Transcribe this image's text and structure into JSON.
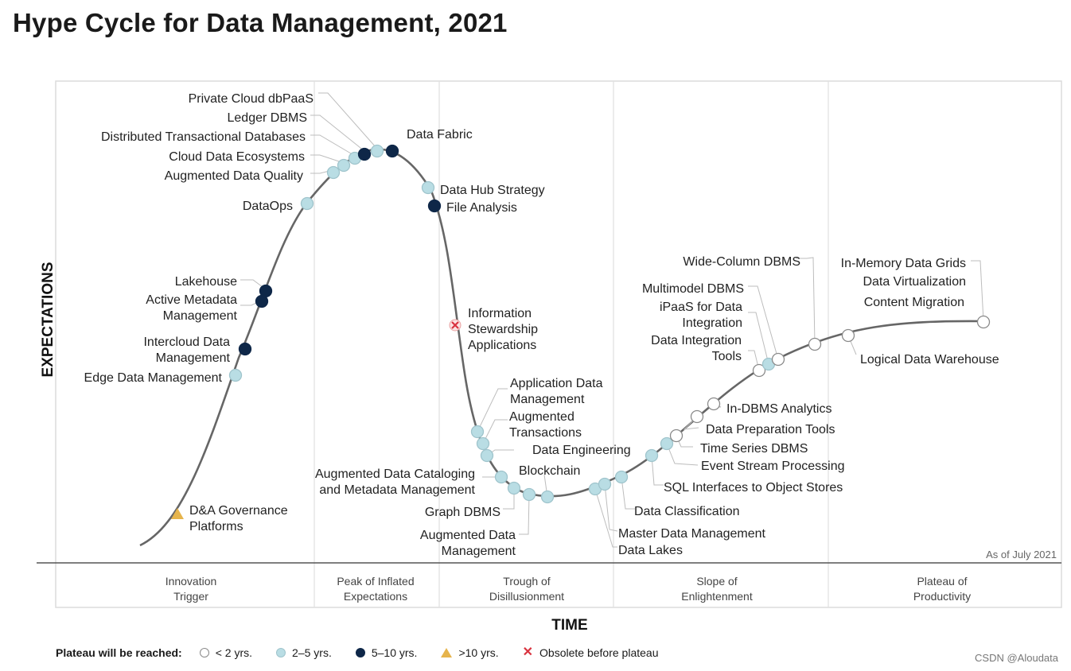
{
  "title": "Hype Cycle for Data Management, 2021",
  "as_of": "As of July 2021",
  "axes": {
    "y": "EXPECTATIONS",
    "x": "TIME"
  },
  "phases": [
    {
      "line1": "Innovation",
      "line2": "Trigger"
    },
    {
      "line1": "Peak of Inflated",
      "line2": "Expectations"
    },
    {
      "line1": "Trough of",
      "line2": "Disillusionment"
    },
    {
      "line1": "Slope of",
      "line2": "Enlightenment"
    },
    {
      "line1": "Plateau of",
      "line2": "Productivity"
    }
  ],
  "legend": {
    "title": "Plateau will be reached:",
    "items": [
      {
        "key": "lt2",
        "label": "< 2 yrs.",
        "color": "#ffffff"
      },
      {
        "key": "2to5",
        "label": "2–5 yrs.",
        "color": "#b9dde4"
      },
      {
        "key": "5to10",
        "label": "5–10 yrs.",
        "color": "#0e2748"
      },
      {
        "key": "gt10",
        "label": ">10 yrs.",
        "color": "#e6b44c"
      },
      {
        "key": "obsolete",
        "label": "Obsolete before plateau",
        "color": "#d9333f"
      }
    ]
  },
  "technologies": [
    {
      "name": "D&A Governance Platforms",
      "lines": [
        "D&A Governance",
        "Platforms"
      ],
      "type": "gt10"
    },
    {
      "name": "Edge Data Management",
      "lines": [
        "Edge Data Management"
      ],
      "type": "2to5"
    },
    {
      "name": "Intercloud Data Management",
      "lines": [
        "Intercloud Data",
        "Management"
      ],
      "type": "5to10"
    },
    {
      "name": "Active Metadata Management",
      "lines": [
        "Active Metadata",
        "Management"
      ],
      "type": "5to10"
    },
    {
      "name": "Lakehouse",
      "lines": [
        "Lakehouse"
      ],
      "type": "5to10"
    },
    {
      "name": "DataOps",
      "lines": [
        "DataOps"
      ],
      "type": "2to5"
    },
    {
      "name": "Augmented Data Quality",
      "lines": [
        "Augmented Data Quality"
      ],
      "type": "2to5"
    },
    {
      "name": "Cloud Data Ecosystems",
      "lines": [
        "Cloud Data Ecosystems"
      ],
      "type": "2to5"
    },
    {
      "name": "Distributed Transactional Databases",
      "lines": [
        "Distributed Transactional Databases"
      ],
      "type": "2to5"
    },
    {
      "name": "Ledger DBMS",
      "lines": [
        "Ledger DBMS"
      ],
      "type": "5to10"
    },
    {
      "name": "Private Cloud dbPaaS",
      "lines": [
        "Private Cloud dbPaaS"
      ],
      "type": "2to5"
    },
    {
      "name": "Data Fabric",
      "lines": [
        "Data Fabric"
      ],
      "type": "5to10"
    },
    {
      "name": "Data Hub Strategy",
      "lines": [
        "Data Hub Strategy"
      ],
      "type": "2to5"
    },
    {
      "name": "File Analysis",
      "lines": [
        "File Analysis"
      ],
      "type": "5to10"
    },
    {
      "name": "Information Stewardship Applications",
      "lines": [
        "Information",
        "Stewardship",
        "Applications"
      ],
      "type": "obsolete"
    },
    {
      "name": "Application Data Management",
      "lines": [
        "Application Data",
        "Management"
      ],
      "type": "2to5"
    },
    {
      "name": "Augmented Transactions",
      "lines": [
        "Augmented",
        "Transactions"
      ],
      "type": "2to5"
    },
    {
      "name": "Data Engineering",
      "lines": [
        "Data Engineering"
      ],
      "type": "2to5"
    },
    {
      "name": "Augmented Data Cataloging and Metadata Management",
      "lines": [
        "Augmented Data Cataloging",
        "and Metadata Management"
      ],
      "type": "2to5"
    },
    {
      "name": "Graph DBMS",
      "lines": [
        "Graph DBMS"
      ],
      "type": "2to5"
    },
    {
      "name": "Augmented Data Management",
      "lines": [
        "Augmented Data",
        "Management"
      ],
      "type": "2to5"
    },
    {
      "name": "Blockchain",
      "lines": [
        "Blockchain"
      ],
      "type": "2to5"
    },
    {
      "name": "Data Lakes",
      "lines": [
        "Data Lakes"
      ],
      "type": "2to5"
    },
    {
      "name": "Master Data Management",
      "lines": [
        "Master Data Management"
      ],
      "type": "2to5"
    },
    {
      "name": "Data Classification",
      "lines": [
        "Data Classification"
      ],
      "type": "2to5"
    },
    {
      "name": "SQL Interfaces to Object Stores",
      "lines": [
        "SQL Interfaces to Object Stores"
      ],
      "type": "2to5"
    },
    {
      "name": "Event Stream Processing",
      "lines": [
        "Event Stream Processing"
      ],
      "type": "2to5"
    },
    {
      "name": "Time Series DBMS",
      "lines": [
        "Time Series DBMS"
      ],
      "type": "lt2"
    },
    {
      "name": "Data Preparation Tools",
      "lines": [
        "Data Preparation Tools"
      ],
      "type": "lt2"
    },
    {
      "name": "In-DBMS Analytics",
      "lines": [
        "In-DBMS Analytics"
      ],
      "type": "lt2"
    },
    {
      "name": "Data Integration Tools",
      "lines": [
        "Data Integration",
        "Tools"
      ],
      "type": "lt2"
    },
    {
      "name": "iPaaS for Data Integration",
      "lines": [
        "iPaaS for Data",
        "Integration"
      ],
      "type": "2to5"
    },
    {
      "name": "Multimodel DBMS",
      "lines": [
        "Multimodel DBMS"
      ],
      "type": "lt2"
    },
    {
      "name": "Wide-Column DBMS",
      "lines": [
        "Wide-Column DBMS"
      ],
      "type": "lt2"
    },
    {
      "name": "Logical Data Warehouse",
      "lines": [
        "Logical Data Warehouse"
      ],
      "type": "lt2"
    },
    {
      "name": "In-Memory Data Grids",
      "lines": [
        "In-Memory Data Grids"
      ],
      "type": "lt2"
    },
    {
      "name": "Data Virtualization",
      "lines": [
        "Data Virtualization"
      ],
      "type": "lt2"
    },
    {
      "name": "Content Migration",
      "lines": [
        "Content Migration"
      ],
      "type": "lt2"
    }
  ],
  "watermark": "CSDN @Aloudata"
}
